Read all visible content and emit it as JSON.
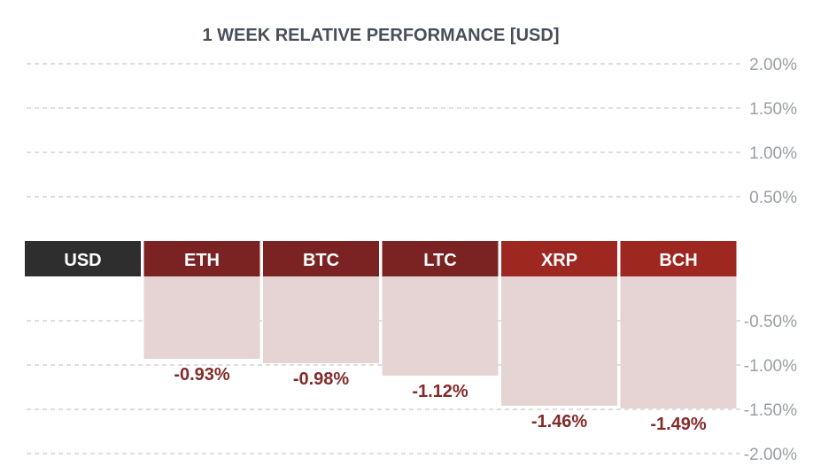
{
  "chart_data": {
    "type": "bar",
    "title": "1 WEEK RELATIVE PERFORMANCE  [USD]",
    "base_currency": "USD",
    "categories": [
      "ETH",
      "BTC",
      "LTC",
      "XRP",
      "BCH"
    ],
    "values": [
      -0.93,
      -0.98,
      -1.12,
      -1.46,
      -1.49
    ],
    "value_labels": [
      "-0.93%",
      "-0.98%",
      "-1.12%",
      "-1.46%",
      "-1.49%"
    ],
    "y_ticks_positive": [
      "2.00%",
      "1.50%",
      "1.00%",
      "0.50%"
    ],
    "y_ticks_negative": [
      "-0.50%",
      "-1.00%",
      "-1.50%",
      "-2.00%"
    ],
    "ylim": [
      -2.0,
      2.0
    ],
    "grid": true,
    "colors": {
      "title": "#4a4e5a",
      "tick": "#9b9ea3",
      "base_header": "#2e2e2e",
      "headers": [
        "#7a2322",
        "#7a2322",
        "#7a2322",
        "#9e2722",
        "#9e2722"
      ],
      "bar_fill": "#e6d3d3",
      "value_label": "#832a2a"
    }
  }
}
